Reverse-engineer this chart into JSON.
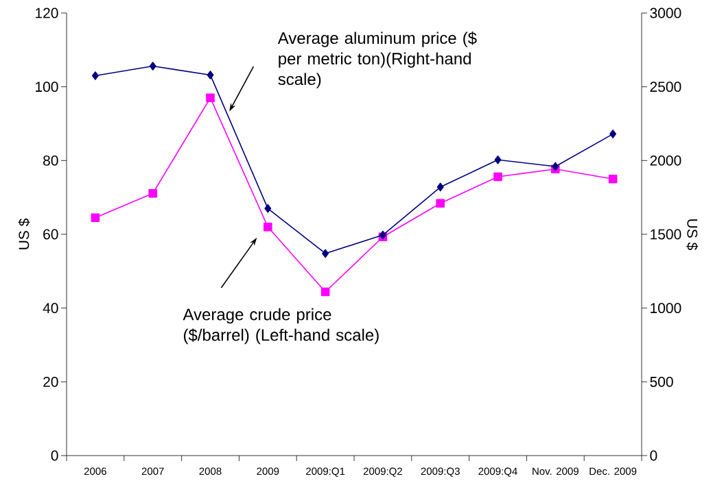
{
  "chart_data": {
    "type": "line",
    "categories": [
      "2006",
      "2007",
      "2008",
      "2009",
      "2009:Q1",
      "2009:Q2",
      "2009:Q3",
      "2009:Q4",
      "Nov. 2009",
      "Dec. 2009"
    ],
    "series": [
      {
        "color": "#000080",
        "marker": "diamond",
        "axis": "y2",
        "values": [
          2575,
          2640,
          2580,
          1675,
          1370,
          1495,
          1820,
          2005,
          1960,
          2180
        ]
      },
      {
        "color": "#ff00ff",
        "marker": "square",
        "values": [
          64.5,
          71.1,
          97.0,
          62.0,
          44.4,
          59.3,
          68.4,
          75.6,
          77.7,
          75.0
        ]
      }
    ],
    "ylabel": "US $",
    "y2label": "US $",
    "ylim": [
      0,
      120
    ],
    "yticks": [
      0,
      20,
      40,
      60,
      80,
      100,
      120
    ],
    "y2lim": [
      0,
      3000
    ],
    "y2ticks": [
      0,
      500,
      1000,
      1500,
      2000,
      2500,
      3000
    ],
    "annotations": [
      "Average aluminum price ($ per metric ton)(Right-hand scale)",
      "Average crude price ($/barrel) (Left-hand scale)"
    ],
    "line_style": "solid"
  }
}
